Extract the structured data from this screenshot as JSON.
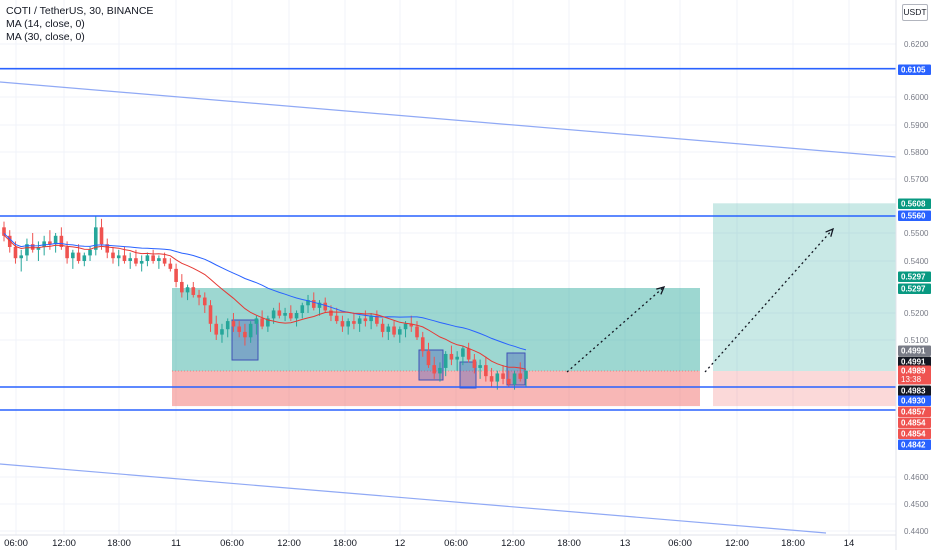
{
  "legend": {
    "symbol": "COTI / TetherUS, 30, BINANCE",
    "ma14": "MA (14, close, 0)",
    "ma30": "MA (30, close, 0)"
  },
  "currency_button": "USDT",
  "colors": {
    "up": "#26a69a",
    "down": "#ef5350",
    "ma14": "#e53935",
    "ma30": "#2962ff",
    "level_line": "#2962ff",
    "target_zone": "#26a69a",
    "stop_zone": "#ef5350",
    "marker_box": "#3f51b5"
  },
  "chart_data": {
    "type": "candlestick",
    "x_ticks": [
      "06:00",
      "12:00",
      "18:00",
      "11",
      "06:00",
      "12:00",
      "18:00",
      "12",
      "06:00",
      "12:00",
      "18:00",
      "13",
      "06:00",
      "12:00",
      "18:00",
      "14"
    ],
    "y_ticks": [
      "0.6200",
      "0.6000",
      "0.5900",
      "0.5800",
      "0.5700",
      "0.5500",
      "0.5400",
      "0.5200",
      "0.5100",
      "0.4600",
      "0.4500",
      "0.4400"
    ],
    "horizontal_levels": [
      0.6105,
      0.556,
      0.493,
      0.4842
    ],
    "price_labels": [
      {
        "text": "0.6105",
        "color": "#2962ff"
      },
      {
        "text": "0.5608",
        "color": "#089981"
      },
      {
        "text": "0.5560",
        "color": "#2962ff"
      },
      {
        "text": "0.5297",
        "color": "#089981"
      },
      {
        "text": "0.5297",
        "color": "#089981"
      },
      {
        "text": "0.4991",
        "color": "#787b86"
      },
      {
        "text": "0.4991",
        "color": "#131722"
      },
      {
        "text": "0.4989",
        "sub": "13:38",
        "color": "#ef5350"
      },
      {
        "text": "0.4983",
        "color": "#131722"
      },
      {
        "text": "0.4930",
        "color": "#2962ff"
      },
      {
        "text": "0.4857",
        "color": "#ef5350"
      },
      {
        "text": "0.4854",
        "color": "#ef5350"
      },
      {
        "text": "0.4854",
        "color": "#ef5350"
      },
      {
        "text": "0.4842",
        "color": "#2962ff"
      }
    ],
    "series": [
      {
        "name": "COTI / TetherUS",
        "type": "candlestick",
        "ohlc": [
          [
            0.552,
            0.554,
            0.547,
            0.549
          ],
          [
            0.549,
            0.551,
            0.543,
            0.545
          ],
          [
            0.545,
            0.547,
            0.539,
            0.541
          ],
          [
            0.541,
            0.544,
            0.536,
            0.542
          ],
          [
            0.542,
            0.548,
            0.54,
            0.546
          ],
          [
            0.546,
            0.55,
            0.543,
            0.544
          ],
          [
            0.544,
            0.547,
            0.54,
            0.545
          ],
          [
            0.545,
            0.549,
            0.542,
            0.547
          ],
          [
            0.547,
            0.551,
            0.544,
            0.546
          ],
          [
            0.546,
            0.55,
            0.543,
            0.549
          ],
          [
            0.549,
            0.552,
            0.544,
            0.545
          ],
          [
            0.545,
            0.547,
            0.539,
            0.541
          ],
          [
            0.541,
            0.544,
            0.537,
            0.543
          ],
          [
            0.543,
            0.546,
            0.539,
            0.54
          ],
          [
            0.54,
            0.543,
            0.538,
            0.542
          ],
          [
            0.542,
            0.545,
            0.54,
            0.544
          ],
          [
            0.544,
            0.556,
            0.542,
            0.552
          ],
          [
            0.552,
            0.555,
            0.544,
            0.546
          ],
          [
            0.546,
            0.548,
            0.541,
            0.543
          ],
          [
            0.543,
            0.545,
            0.539,
            0.541
          ],
          [
            0.541,
            0.544,
            0.538,
            0.542
          ],
          [
            0.542,
            0.545,
            0.539,
            0.54
          ],
          [
            0.54,
            0.543,
            0.537,
            0.541
          ],
          [
            0.541,
            0.544,
            0.538,
            0.539
          ],
          [
            0.539,
            0.542,
            0.536,
            0.54
          ],
          [
            0.54,
            0.543,
            0.538,
            0.542
          ],
          [
            0.542,
            0.544,
            0.539,
            0.54
          ],
          [
            0.54,
            0.542,
            0.537,
            0.541
          ],
          [
            0.541,
            0.543,
            0.538,
            0.539
          ],
          [
            0.539,
            0.541,
            0.536,
            0.537
          ],
          [
            0.537,
            0.539,
            0.53,
            0.532
          ],
          [
            0.532,
            0.535,
            0.526,
            0.528
          ],
          [
            0.528,
            0.531,
            0.525,
            0.53
          ],
          [
            0.53,
            0.532,
            0.526,
            0.527
          ],
          [
            0.527,
            0.529,
            0.523,
            0.526
          ],
          [
            0.526,
            0.528,
            0.52,
            0.523
          ],
          [
            0.523,
            0.525,
            0.513,
            0.516
          ],
          [
            0.516,
            0.519,
            0.51,
            0.512
          ],
          [
            0.512,
            0.516,
            0.509,
            0.514
          ],
          [
            0.514,
            0.518,
            0.511,
            0.517
          ],
          [
            0.517,
            0.52,
            0.513,
            0.515
          ],
          [
            0.515,
            0.517,
            0.511,
            0.513
          ],
          [
            0.513,
            0.516,
            0.508,
            0.511
          ],
          [
            0.511,
            0.517,
            0.509,
            0.516
          ],
          [
            0.516,
            0.519,
            0.512,
            0.518
          ],
          [
            0.518,
            0.521,
            0.514,
            0.515
          ],
          [
            0.515,
            0.519,
            0.513,
            0.518
          ],
          [
            0.518,
            0.522,
            0.516,
            0.521
          ],
          [
            0.521,
            0.524,
            0.518,
            0.519
          ],
          [
            0.519,
            0.522,
            0.517,
            0.52
          ],
          [
            0.52,
            0.523,
            0.517,
            0.518
          ],
          [
            0.518,
            0.521,
            0.515,
            0.52
          ],
          [
            0.52,
            0.524,
            0.518,
            0.523
          ],
          [
            0.523,
            0.527,
            0.52,
            0.525
          ],
          [
            0.525,
            0.528,
            0.521,
            0.522
          ],
          [
            0.522,
            0.525,
            0.519,
            0.524
          ],
          [
            0.524,
            0.526,
            0.52,
            0.521
          ],
          [
            0.521,
            0.523,
            0.517,
            0.519
          ],
          [
            0.519,
            0.522,
            0.516,
            0.517
          ],
          [
            0.517,
            0.519,
            0.513,
            0.515
          ],
          [
            0.515,
            0.518,
            0.512,
            0.517
          ],
          [
            0.517,
            0.52,
            0.514,
            0.516
          ],
          [
            0.516,
            0.519,
            0.513,
            0.518
          ],
          [
            0.518,
            0.521,
            0.515,
            0.517
          ],
          [
            0.517,
            0.52,
            0.514,
            0.519
          ],
          [
            0.519,
            0.521,
            0.515,
            0.516
          ],
          [
            0.516,
            0.518,
            0.511,
            0.513
          ],
          [
            0.513,
            0.516,
            0.51,
            0.515
          ],
          [
            0.515,
            0.517,
            0.511,
            0.512
          ],
          [
            0.512,
            0.515,
            0.509,
            0.514
          ],
          [
            0.514,
            0.517,
            0.511,
            0.516
          ],
          [
            0.516,
            0.519,
            0.513,
            0.515
          ],
          [
            0.515,
            0.517,
            0.51,
            0.511
          ],
          [
            0.511,
            0.513,
            0.504,
            0.506
          ],
          [
            0.506,
            0.509,
            0.5,
            0.501
          ],
          [
            0.501,
            0.504,
            0.496,
            0.498
          ],
          [
            0.498,
            0.502,
            0.495,
            0.5
          ],
          [
            0.5,
            0.506,
            0.497,
            0.505
          ],
          [
            0.505,
            0.508,
            0.501,
            0.503
          ],
          [
            0.503,
            0.506,
            0.499,
            0.504
          ],
          [
            0.504,
            0.508,
            0.501,
            0.507
          ],
          [
            0.507,
            0.509,
            0.502,
            0.503
          ],
          [
            0.503,
            0.505,
            0.498,
            0.5
          ],
          [
            0.5,
            0.503,
            0.496,
            0.501
          ],
          [
            0.501,
            0.504,
            0.495,
            0.497
          ],
          [
            0.497,
            0.5,
            0.493,
            0.495
          ],
          [
            0.495,
            0.499,
            0.492,
            0.498
          ],
          [
            0.498,
            0.501,
            0.494,
            0.496
          ],
          [
            0.496,
            0.499,
            0.493,
            0.494
          ],
          [
            0.494,
            0.499,
            0.492,
            0.498
          ],
          [
            0.498,
            0.502,
            0.495,
            0.496
          ],
          [
            0.496,
            0.499,
            0.493,
            0.499
          ]
        ]
      },
      {
        "name": "MA (14, close, 0)",
        "type": "line",
        "source": "close",
        "period": 14
      },
      {
        "name": "MA (30, close, 0)",
        "type": "line",
        "source": "close",
        "period": 30
      }
    ],
    "drawings": {
      "long_position_1": {
        "entry": 0.4989,
        "target": 0.5297,
        "stop": 0.4857
      },
      "long_position_2": {
        "entry": 0.4989,
        "target": 0.5608,
        "stop": 0.4857
      },
      "trend_channel_upper": {
        "from": 0.602,
        "to": 0.5782
      },
      "trend_channel_lower": {
        "from": 0.467,
        "to": 0.4396
      }
    }
  }
}
